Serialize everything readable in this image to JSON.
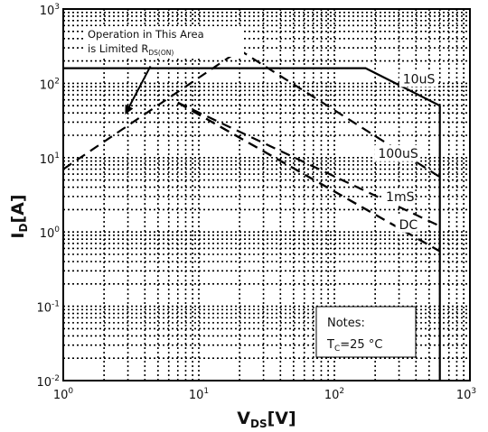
{
  "chart_data": {
    "type": "line",
    "xlabel": "V",
    "xlabel_sub": "DS",
    "xlabel_unit": "[V]",
    "ylabel": "I",
    "ylabel_sub": "D",
    "ylabel_unit": "[A]",
    "xscale": "log",
    "yscale": "log",
    "xlim": [
      1,
      1000
    ],
    "ylim": [
      0.01,
      1000
    ],
    "grid": true,
    "x_ticks": [
      {
        "base": "10",
        "exp": "0"
      },
      {
        "base": "10",
        "exp": "1"
      },
      {
        "base": "10",
        "exp": "2"
      },
      {
        "base": "10",
        "exp": "3"
      }
    ],
    "y_ticks": [
      {
        "base": "10",
        "exp": "-2"
      },
      {
        "base": "10",
        "exp": "-1"
      },
      {
        "base": "10",
        "exp": "0"
      },
      {
        "base": "10",
        "exp": "1"
      },
      {
        "base": "10",
        "exp": "2"
      },
      {
        "base": "10",
        "exp": "3"
      }
    ],
    "limit_line": {
      "style": "solid",
      "x": [
        1,
        170,
        600,
        600
      ],
      "y": [
        160,
        160,
        50,
        0.01
      ]
    },
    "series": [
      {
        "name": "10uS",
        "style": "dashed",
        "x": [
          1,
          20,
          600
        ],
        "y": [
          7,
          280,
          5.5
        ]
      },
      {
        "name": "100uS",
        "style": "dashed",
        "x": [
          7,
          600
        ],
        "y": [
          55,
          1.2
        ]
      },
      {
        "name": "1mS",
        "style": "dashed",
        "x": [
          7,
          600
        ],
        "y": [
          55,
          0.55
        ]
      },
      {
        "name": "DC",
        "style": "dashed",
        "x": [
          7,
          600
        ],
        "y": [
          55,
          0.55
        ]
      }
    ],
    "curve_labels": [
      {
        "text": "10uS",
        "x": 320,
        "y": 100
      },
      {
        "text": "100uS",
        "x": 210,
        "y": 10
      },
      {
        "text": "1mS",
        "x": 240,
        "y": 2.6
      },
      {
        "text": "DC",
        "x": 300,
        "y": 1.1
      }
    ],
    "annotation": {
      "line1": "Operation in This Area",
      "line2": "is Limited R",
      "line2_sub": "DS(ON)",
      "arrow_from": [
        4.4,
        170
      ],
      "arrow_to": [
        2.9,
        40
      ]
    },
    "notes": {
      "title": "Notes:",
      "line_main": "T",
      "line_sub": "C",
      "line_rest": "=25 °C"
    }
  }
}
